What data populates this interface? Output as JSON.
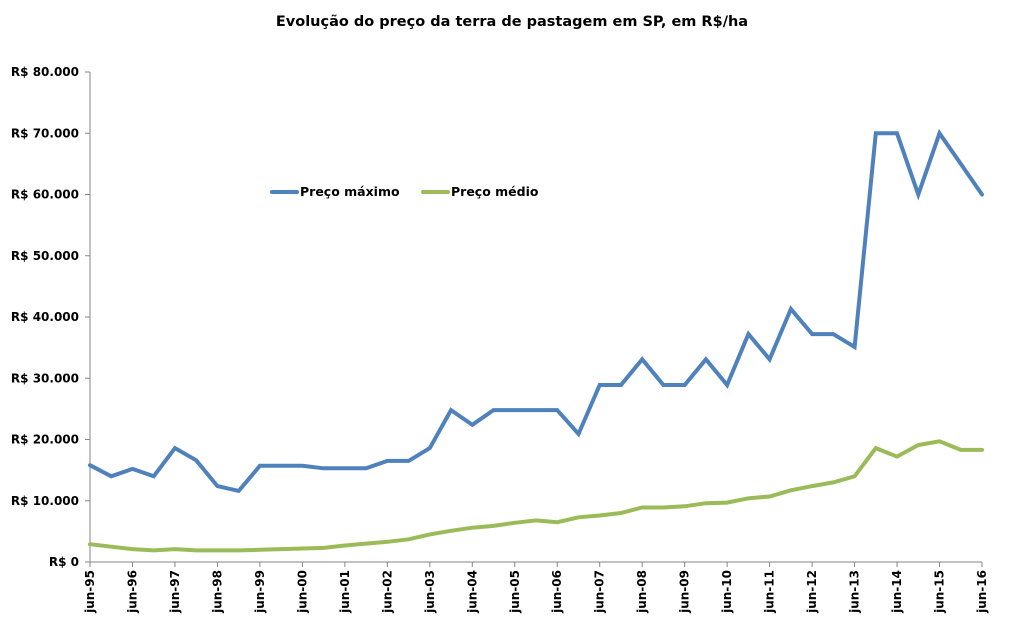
{
  "chart_data": {
    "type": "line",
    "title": "Evolução do preço da terra de pastagem em SP, em R$/ha",
    "xlabel": "",
    "ylabel": "",
    "ylim": [
      0,
      80000
    ],
    "grid": false,
    "legend_position": "upper-left-inside",
    "yticks": [
      0,
      10000,
      20000,
      30000,
      40000,
      50000,
      60000,
      70000,
      80000
    ],
    "ytick_labels": [
      "R$ 0",
      "R$ 10.000",
      "R$ 20.000",
      "R$ 30.000",
      "R$ 40.000",
      "R$ 50.000",
      "R$ 60.000",
      "R$ 70.000",
      "R$ 80.000"
    ],
    "xtick_labels": [
      "jun-95",
      "jun-96",
      "jun-97",
      "jun-98",
      "jun-99",
      "jun-00",
      "jun-01",
      "jun-02",
      "jun-03",
      "jun-04",
      "jun-05",
      "jun-06",
      "jun-07",
      "jun-08",
      "jun-09",
      "jun-10",
      "jun-11",
      "jun-12",
      "jun-13",
      "jun-14",
      "jun-15",
      "jun-16"
    ],
    "x": [
      "jun-95",
      "dez-95",
      "jun-96",
      "dez-96",
      "jun-97",
      "dez-97",
      "jun-98",
      "dez-98",
      "jun-99",
      "dez-99",
      "jun-00",
      "dez-00",
      "jun-01",
      "dez-01",
      "jun-02",
      "dez-02",
      "jun-03",
      "dez-03",
      "jun-04",
      "dez-04",
      "jun-05",
      "dez-05",
      "jun-06",
      "dez-06",
      "jun-07",
      "dez-07",
      "jun-08",
      "dez-08",
      "jun-09",
      "dez-09",
      "jun-10",
      "dez-10",
      "jun-11",
      "dez-11",
      "jun-12",
      "dez-12",
      "jun-13",
      "dez-13",
      "jun-14",
      "dez-14",
      "jun-15",
      "dez-15",
      "jun-16"
    ],
    "series": [
      {
        "name": "Preço máximo",
        "color": "#4F81BD",
        "values": [
          15800,
          14000,
          15200,
          14000,
          18600,
          16600,
          12400,
          11600,
          15700,
          15700,
          15700,
          15300,
          15300,
          15300,
          16500,
          16500,
          18600,
          24800,
          22400,
          24800,
          24800,
          24800,
          24800,
          20900,
          28900,
          28900,
          33100,
          28900,
          28900,
          33100,
          28900,
          37200,
          33100,
          41300,
          37200,
          37200,
          35100,
          70000,
          70000,
          60000,
          70000,
          65000,
          60000
        ]
      },
      {
        "name": "Preço médio",
        "color": "#9BBB59",
        "values": [
          2900,
          2500,
          2100,
          1900,
          2100,
          1900,
          1900,
          1900,
          2000,
          2100,
          2200,
          2300,
          2700,
          3000,
          3300,
          3700,
          4500,
          5100,
          5600,
          5900,
          6400,
          6800,
          6500,
          7300,
          7600,
          8000,
          8900,
          8900,
          9100,
          9600,
          9700,
          10400,
          10700,
          11700,
          12400,
          13000,
          14000,
          18600,
          17200,
          19100,
          19700,
          18300,
          18300
        ]
      }
    ]
  }
}
